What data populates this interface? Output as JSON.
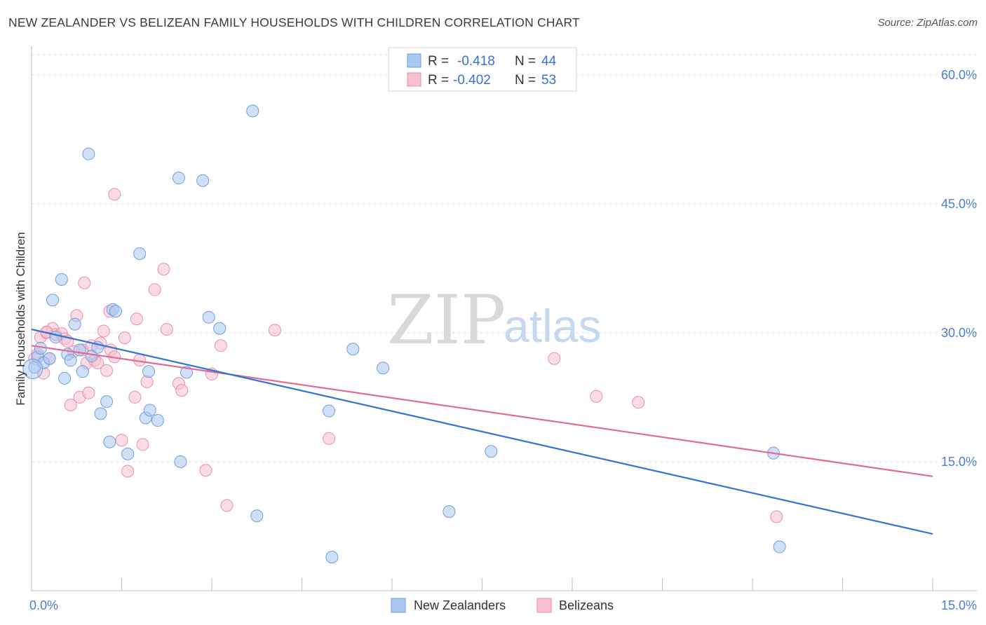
{
  "title": "NEW ZEALANDER VS BELIZEAN FAMILY HOUSEHOLDS WITH CHILDREN CORRELATION CHART",
  "source": "Source: ZipAtlas.com",
  "watermark": {
    "zip": "ZIP",
    "atlas": "atlas"
  },
  "colors": {
    "blue_fill": "#a9c8f0",
    "blue_stroke": "#6e9ee0",
    "blue_line": "#2f74d6",
    "pink_fill": "#f7bfd0",
    "pink_stroke": "#ea8fac",
    "pink_line": "#e2689a",
    "tick_text": "#4a7fd4",
    "grid": "#dddddd"
  },
  "legend": {
    "rows": [
      {
        "r_label": "R =",
        "r_value": "-0.418",
        "n_label": "N =",
        "n_value": "44"
      },
      {
        "r_label": "R =",
        "r_value": "-0.402",
        "n_label": "N =",
        "n_value": "53"
      }
    ]
  },
  "chart_data": {
    "type": "scatter",
    "title": "NEW ZEALANDER VS BELIZEAN FAMILY HOUSEHOLDS WITH CHILDREN CORRELATION CHART",
    "xlabel": "",
    "ylabel": "Family Households with Children",
    "xlim": [
      0,
      15
    ],
    "ylim": [
      0,
      63
    ],
    "x_tick_labels": [
      "0.0%",
      "15.0%"
    ],
    "y_ticks": [
      15,
      30,
      45,
      60
    ],
    "y_tick_labels": [
      "15.0%",
      "30.0%",
      "45.0%",
      "60.0%"
    ],
    "legend_position": "top-center",
    "series": [
      {
        "name": "New Zealanders",
        "r": -0.418,
        "n": 44,
        "trend": {
          "x": [
            0,
            15
          ],
          "y": [
            30.4,
            6.6
          ]
        },
        "points": [
          [
            0.05,
            26.0
          ],
          [
            0.1,
            27.2
          ],
          [
            0.15,
            28.2
          ],
          [
            0.2,
            26.5
          ],
          [
            0.3,
            27.0
          ],
          [
            0.35,
            33.8
          ],
          [
            0.4,
            29.5
          ],
          [
            0.5,
            36.2
          ],
          [
            0.55,
            24.7
          ],
          [
            0.6,
            27.5
          ],
          [
            0.65,
            26.8
          ],
          [
            0.72,
            31.0
          ],
          [
            0.8,
            28.0
          ],
          [
            0.85,
            25.5
          ],
          [
            0.95,
            50.8
          ],
          [
            1.0,
            27.3
          ],
          [
            1.1,
            28.3
          ],
          [
            1.15,
            20.6
          ],
          [
            1.25,
            22.0
          ],
          [
            1.3,
            17.3
          ],
          [
            1.35,
            32.7
          ],
          [
            1.4,
            32.5
          ],
          [
            1.6,
            15.9
          ],
          [
            1.8,
            39.2
          ],
          [
            1.9,
            20.1
          ],
          [
            1.95,
            25.5
          ],
          [
            1.97,
            21.0
          ],
          [
            2.1,
            19.8
          ],
          [
            2.45,
            48.0
          ],
          [
            2.48,
            15.0
          ],
          [
            2.58,
            25.4
          ],
          [
            2.85,
            47.7
          ],
          [
            2.95,
            31.8
          ],
          [
            3.13,
            30.5
          ],
          [
            3.68,
            55.8
          ],
          [
            3.75,
            8.7
          ],
          [
            4.95,
            20.9
          ],
          [
            5.0,
            3.9
          ],
          [
            5.35,
            28.1
          ],
          [
            5.85,
            25.9
          ],
          [
            7.65,
            16.2
          ],
          [
            6.95,
            9.2
          ],
          [
            12.35,
            16.0
          ],
          [
            12.45,
            5.1
          ]
        ]
      },
      {
        "name": "Belizeans",
        "r": -0.402,
        "n": 53,
        "trend": {
          "x": [
            0,
            15
          ],
          "y": [
            28.5,
            13.3
          ]
        },
        "points": [
          [
            0.05,
            27.0
          ],
          [
            0.1,
            27.5
          ],
          [
            0.15,
            29.5
          ],
          [
            0.2,
            25.3
          ],
          [
            0.25,
            30.0
          ],
          [
            0.3,
            27.0
          ],
          [
            0.35,
            30.5
          ],
          [
            0.4,
            29.8
          ],
          [
            0.5,
            29.9
          ],
          [
            0.55,
            29.3
          ],
          [
            0.6,
            29.0
          ],
          [
            0.65,
            21.6
          ],
          [
            0.75,
            32.0
          ],
          [
            0.8,
            22.5
          ],
          [
            0.85,
            28.0
          ],
          [
            0.88,
            35.8
          ],
          [
            0.92,
            26.5
          ],
          [
            0.95,
            23.0
          ],
          [
            1.0,
            28.5
          ],
          [
            1.05,
            26.8
          ],
          [
            1.1,
            26.5
          ],
          [
            1.2,
            30.2
          ],
          [
            1.25,
            25.6
          ],
          [
            1.3,
            32.5
          ],
          [
            1.32,
            28.0
          ],
          [
            1.38,
            27.2
          ],
          [
            1.5,
            17.5
          ],
          [
            1.55,
            29.4
          ],
          [
            1.6,
            13.9
          ],
          [
            1.72,
            22.5
          ],
          [
            1.75,
            31.6
          ],
          [
            1.8,
            26.8
          ],
          [
            1.85,
            17.0
          ],
          [
            1.92,
            24.3
          ],
          [
            2.05,
            35.0
          ],
          [
            2.2,
            37.4
          ],
          [
            2.25,
            30.4
          ],
          [
            2.45,
            24.1
          ],
          [
            2.5,
            23.3
          ],
          [
            2.9,
            14.0
          ],
          [
            3.0,
            25.2
          ],
          [
            3.15,
            28.5
          ],
          [
            3.25,
            9.9
          ],
          [
            4.05,
            30.3
          ],
          [
            4.95,
            17.7
          ],
          [
            1.38,
            46.1
          ],
          [
            8.7,
            27.0
          ],
          [
            9.4,
            22.6
          ],
          [
            10.1,
            21.9
          ],
          [
            12.4,
            8.6
          ],
          [
            0.25,
            30.1
          ],
          [
            0.7,
            27.8
          ],
          [
            1.15,
            28.8
          ]
        ]
      }
    ]
  }
}
